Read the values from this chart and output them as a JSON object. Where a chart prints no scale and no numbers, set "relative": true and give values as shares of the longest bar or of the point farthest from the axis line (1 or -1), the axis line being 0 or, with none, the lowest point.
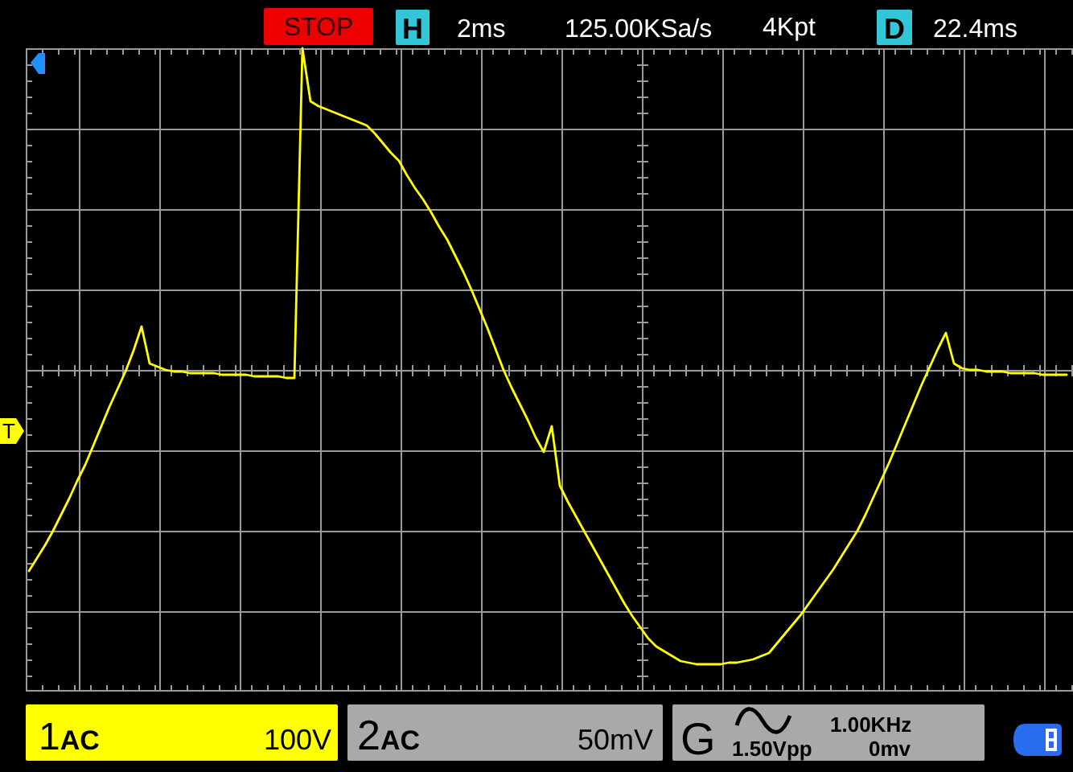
{
  "chart_data": {
    "type": "line",
    "relative": true,
    "grid": true,
    "color": "#ffff00",
    "categories": [
      null,
      null,
      null,
      null,
      null,
      null,
      null,
      null,
      null,
      null,
      null,
      null,
      null,
      null,
      null,
      null,
      null,
      null,
      null,
      null,
      null,
      null,
      null,
      null,
      null,
      null,
      null,
      null,
      null,
      null,
      null,
      null,
      null,
      null,
      null,
      null,
      null,
      null,
      null,
      null,
      null,
      null,
      null,
      null,
      null,
      null,
      null,
      null,
      null,
      null,
      null,
      null,
      null,
      null,
      null,
      null,
      null,
      null,
      null,
      null,
      null,
      null,
      null,
      null,
      null,
      null,
      null,
      null,
      null,
      null,
      null,
      null,
      null,
      null,
      null,
      null,
      null,
      null,
      null,
      null,
      null,
      null,
      null,
      null,
      null,
      null,
      null,
      null,
      null,
      null,
      null,
      null,
      null,
      null,
      null,
      null,
      null,
      null,
      null,
      null,
      null,
      null,
      null,
      null,
      null,
      null,
      null,
      null,
      null,
      null,
      null,
      null,
      null,
      null,
      null,
      null,
      null,
      null,
      null,
      null,
      null,
      null,
      null,
      null,
      null,
      null,
      null,
      null,
      null,
      null
    ],
    "values": [
      -0.625,
      -0.585,
      -0.545,
      -0.5,
      -0.45,
      -0.4,
      -0.345,
      -0.295,
      -0.235,
      -0.175,
      -0.115,
      -0.06,
      -0.005,
      0.06,
      0.135,
      0.02,
      0.01,
      0,
      -0.005,
      -0.005,
      -0.01,
      -0.01,
      -0.01,
      -0.01,
      -0.015,
      -0.015,
      -0.015,
      -0.015,
      -0.02,
      -0.02,
      -0.02,
      -0.02,
      -0.025,
      -0.025,
      1,
      0.835,
      0.82,
      0.81,
      0.8,
      0.79,
      0.78,
      0.77,
      0.76,
      0.735,
      0.705,
      0.675,
      0.65,
      0.605,
      0.565,
      0.53,
      0.49,
      0.445,
      0.405,
      0.355,
      0.305,
      0.25,
      0.19,
      0.13,
      0.065,
      0,
      -0.055,
      -0.105,
      -0.155,
      -0.21,
      -0.255,
      -0.175,
      -0.36,
      -0.41,
      -0.455,
      -0.5,
      -0.545,
      -0.59,
      -0.635,
      -0.68,
      -0.725,
      -0.765,
      -0.8,
      -0.835,
      -0.86,
      -0.875,
      -0.89,
      -0.905,
      -0.91,
      -0.915,
      -0.915,
      -0.915,
      -0.915,
      -0.91,
      -0.91,
      -0.905,
      -0.9,
      -0.89,
      -0.88,
      -0.85,
      -0.82,
      -0.79,
      -0.76,
      -0.725,
      -0.69,
      -0.655,
      -0.62,
      -0.58,
      -0.54,
      -0.5,
      -0.45,
      -0.395,
      -0.34,
      -0.285,
      -0.225,
      -0.165,
      -0.105,
      -0.045,
      0.01,
      0.065,
      0.115,
      0.02,
      0.005,
      0,
      0,
      -0.005,
      -0.005,
      -0.005,
      -0.01,
      -0.01,
      -0.01,
      -0.01,
      -0.015,
      -0.015,
      -0.015,
      -0.015
    ],
    "annotations": [
      "STOP",
      "H",
      "2ms",
      "125.00KSa/s",
      "4Kpt",
      "D",
      "22.4ms",
      "1AC",
      "100V",
      "2AC",
      "50mV",
      "G",
      "1.00KHz",
      "1.50Vpp",
      "0mv",
      {
        "text": "T",
        "y": -0.19
      }
    ]
  }
}
